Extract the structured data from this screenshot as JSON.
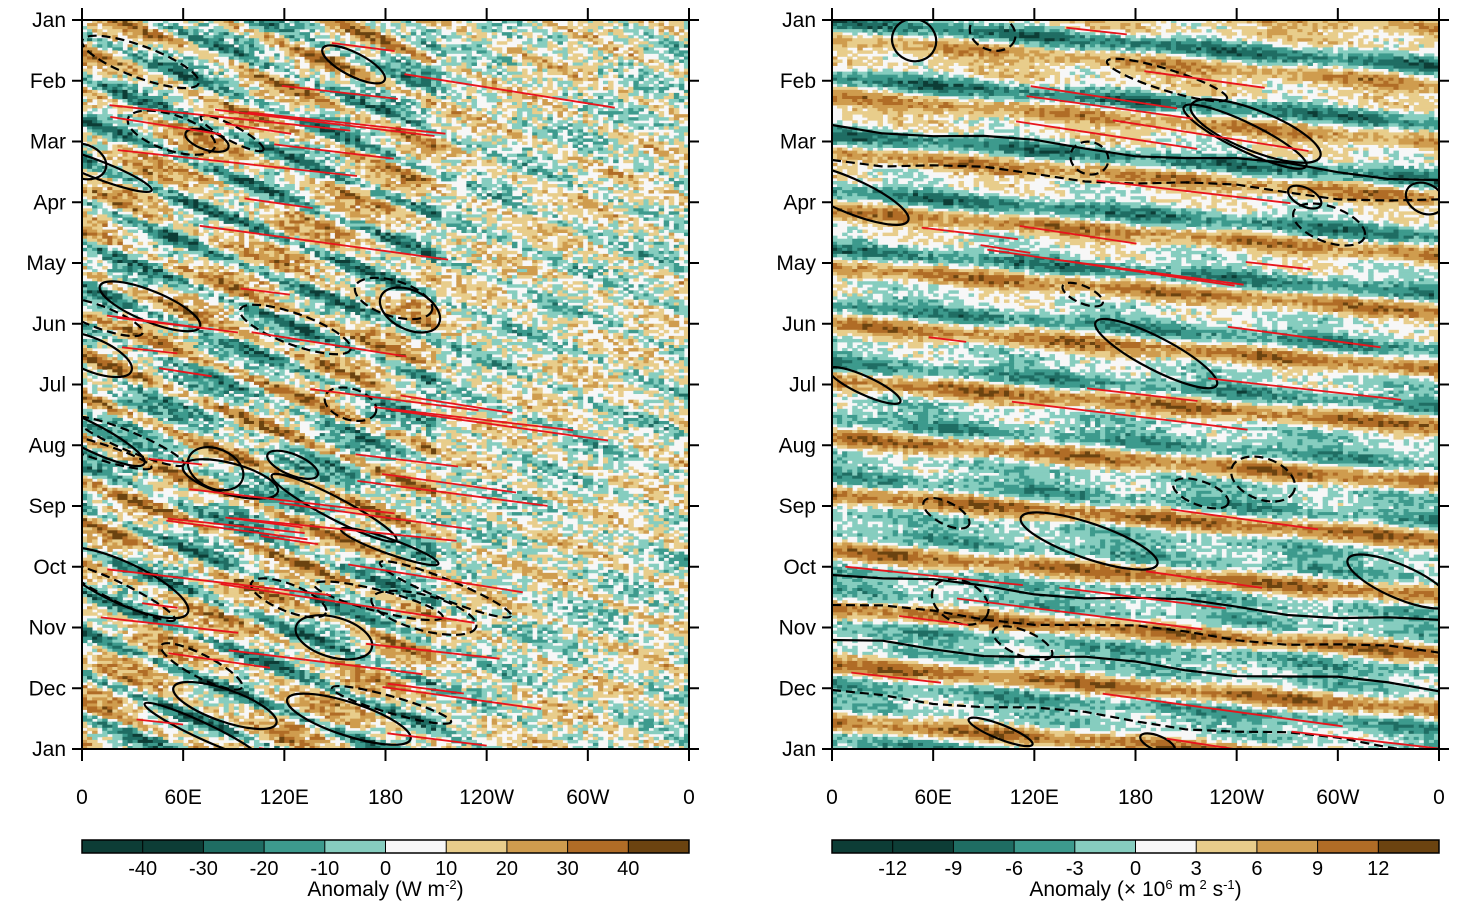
{
  "chart_data": [
    {
      "type": "heatmap",
      "title": "",
      "xlabel": "",
      "ylabel": "",
      "x_ticks": [
        "0",
        "60E",
        "120E",
        "180",
        "120W",
        "60W",
        "0"
      ],
      "y_ticks": [
        "Jan",
        "Feb",
        "Mar",
        "Apr",
        "May",
        "Jun",
        "Jul",
        "Aug",
        "Sep",
        "Oct",
        "Nov",
        "Dec",
        "Jan"
      ],
      "colorbar": {
        "labels": [
          "-40",
          "-30",
          "-20",
          "-10",
          "0",
          "10",
          "20",
          "30",
          "40"
        ],
        "levels": [
          -40,
          -30,
          -20,
          -10,
          0,
          10,
          20,
          30,
          40
        ],
        "colors": [
          "#0d3d36",
          "#1f6d63",
          "#3d9a8d",
          "#86cdbf",
          "#f7f7f7",
          "#e8cd8b",
          "#cf9c4e",
          "#b06c26",
          "#6b4310"
        ],
        "title_main": "Anomaly (W m",
        "title_sup": "-2",
        "title_end": ")"
      },
      "overlays": {
        "solid_contours": "positive composite",
        "dashed_contours": "negative composite",
        "red_lines": "propagating events"
      },
      "x_range": [
        "0",
        "0"
      ],
      "y_range": [
        "Jan",
        "Jan"
      ]
    },
    {
      "type": "heatmap",
      "title": "",
      "xlabel": "",
      "ylabel": "",
      "x_ticks": [
        "0",
        "60E",
        "120E",
        "180",
        "120W",
        "60W",
        "0"
      ],
      "y_ticks": [
        "Jan",
        "Feb",
        "Mar",
        "Apr",
        "May",
        "Jun",
        "Jul",
        "Aug",
        "Sep",
        "Oct",
        "Nov",
        "Dec",
        "Jan"
      ],
      "colorbar": {
        "labels": [
          "-12",
          "-9",
          "-6",
          "-3",
          "0",
          "3",
          "6",
          "9",
          "12"
        ],
        "levels": [
          -12,
          -9,
          -6,
          -3,
          0,
          3,
          6,
          9,
          12
        ],
        "colors": [
          "#0d3d36",
          "#1f6d63",
          "#3d9a8d",
          "#86cdbf",
          "#f7f7f7",
          "#e8cd8b",
          "#cf9c4e",
          "#b06c26",
          "#6b4310"
        ],
        "title_main": "Anomaly (× 10",
        "title_sup": "6",
        "title_mid": " m",
        "title_sup2": " 2",
        "title_mid2": " s",
        "title_sup3": "-1",
        "title_end": ")"
      },
      "x_range": [
        "0",
        "0"
      ],
      "y_range": [
        "Jan",
        "Jan"
      ]
    }
  ]
}
